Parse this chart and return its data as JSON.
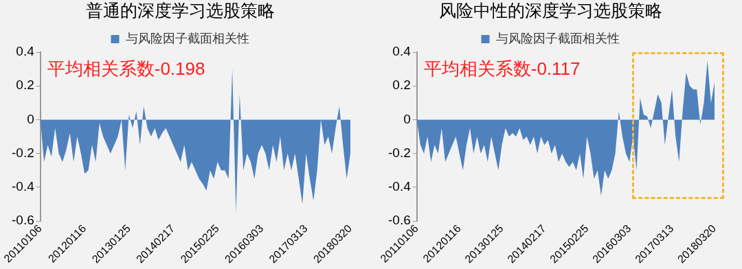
{
  "chart_data": [
    {
      "type": "area",
      "title": "普通的深度学习选股策略",
      "annotations": [
        "平均相关系数-0.198"
      ],
      "legend": "top",
      "categories": [
        "20110106",
        null,
        null,
        null,
        null,
        null,
        null,
        null,
        null,
        null,
        null,
        null,
        "20120116",
        null,
        null,
        null,
        null,
        null,
        null,
        null,
        null,
        null,
        null,
        null,
        "20130125",
        null,
        null,
        null,
        null,
        null,
        null,
        null,
        null,
        null,
        null,
        null,
        "20140217",
        null,
        null,
        null,
        null,
        null,
        null,
        null,
        null,
        null,
        null,
        null,
        "20150225",
        null,
        null,
        null,
        null,
        null,
        null,
        null,
        null,
        null,
        null,
        null,
        "20160303",
        null,
        null,
        null,
        null,
        null,
        null,
        null,
        null,
        null,
        null,
        null,
        "20170313",
        null,
        null,
        null,
        null,
        null,
        null,
        null,
        null,
        null,
        null,
        null,
        "20180320"
      ],
      "series": [
        {
          "name": "与风险因子截面相关性",
          "color": "#4f81bd",
          "values": [
            0,
            -0.25,
            -0.15,
            -0.22,
            -0.05,
            -0.2,
            -0.25,
            -0.18,
            -0.08,
            -0.25,
            -0.1,
            -0.2,
            -0.32,
            -0.3,
            -0.15,
            -0.25,
            -0.02,
            -0.1,
            -0.15,
            -0.2,
            -0.15,
            -0.1,
            0,
            -0.3,
            0.03,
            -0.05,
            0.05,
            -0.15,
            0.08,
            -0.05,
            -0.1,
            -0.05,
            -0.12,
            -0.08,
            -0.05,
            -0.1,
            -0.15,
            -0.2,
            -0.25,
            -0.15,
            -0.3,
            -0.25,
            -0.3,
            -0.35,
            -0.38,
            -0.42,
            -0.3,
            -0.35,
            -0.25,
            -0.3,
            -0.3,
            -0.35,
            0.3,
            -0.55,
            0.15,
            -0.3,
            -0.2,
            -0.25,
            -0.35,
            -0.2,
            -0.15,
            -0.2,
            -0.3,
            -0.15,
            -0.25,
            -0.1,
            -0.3,
            -0.2,
            -0.3,
            -0.2,
            -0.35,
            -0.5,
            -0.2,
            -0.35,
            -0.48,
            -0.3,
            0,
            -0.15,
            -0.1,
            -0.2,
            -0.05,
            0.08,
            -0.15,
            -0.35,
            -0.2
          ]
        }
      ],
      "ylim": [
        -0.6,
        0.4
      ],
      "yticks": [
        -0.6,
        -0.4,
        -0.2,
        0,
        0.2,
        0.4
      ]
    },
    {
      "type": "area",
      "title": "风险中性的深度学习选股策略",
      "annotations": [
        "平均相关系数-0.117"
      ],
      "legend": "top",
      "categories": [
        "20110106",
        null,
        null,
        null,
        null,
        null,
        null,
        null,
        null,
        null,
        null,
        null,
        "20120116",
        null,
        null,
        null,
        null,
        null,
        null,
        null,
        null,
        null,
        null,
        null,
        "20130125",
        null,
        null,
        null,
        null,
        null,
        null,
        null,
        null,
        null,
        null,
        null,
        "20140217",
        null,
        null,
        null,
        null,
        null,
        null,
        null,
        null,
        null,
        null,
        null,
        "20150225",
        null,
        null,
        null,
        null,
        null,
        null,
        null,
        null,
        null,
        null,
        null,
        "20160303",
        null,
        null,
        null,
        null,
        null,
        null,
        null,
        null,
        null,
        null,
        null,
        "20170313",
        null,
        null,
        null,
        null,
        null,
        null,
        null,
        null,
        null,
        null,
        null,
        "20180320"
      ],
      "series": [
        {
          "name": "与风险因子截面相关性",
          "color": "#4f81bd",
          "values": [
            0,
            -0.15,
            -0.2,
            -0.1,
            -0.25,
            -0.15,
            -0.2,
            -0.05,
            -0.25,
            -0.2,
            -0.15,
            -0.1,
            -0.2,
            -0.3,
            -0.15,
            -0.05,
            -0.2,
            -0.1,
            -0.2,
            -0.15,
            -0.25,
            -0.1,
            -0.2,
            -0.3,
            -0.15,
            -0.05,
            -0.1,
            -0.08,
            -0.1,
            -0.05,
            -0.12,
            -0.1,
            -0.15,
            -0.1,
            -0.2,
            -0.1,
            -0.15,
            -0.12,
            -0.2,
            -0.15,
            -0.25,
            -0.2,
            -0.25,
            -0.28,
            -0.25,
            -0.3,
            -0.2,
            -0.35,
            -0.1,
            -0.2,
            -0.35,
            -0.3,
            -0.45,
            -0.3,
            -0.35,
            -0.3,
            -0.2,
            0.05,
            -0.1,
            -0.2,
            -0.25,
            -0.1,
            -0.3,
            0.13,
            0.03,
            0.02,
            -0.05,
            0.05,
            0.15,
            0.1,
            -0.15,
            0.02,
            0.18,
            -0.1,
            -0.25,
            0.05,
            0.28,
            0.2,
            0.18,
            0.18,
            -0.03,
            0.1,
            0.35,
            0.1,
            0.22
          ]
        }
      ],
      "ylim": [
        -0.6,
        0.4
      ],
      "yticks": [
        -0.6,
        -0.4,
        -0.2,
        0,
        0.2,
        0.4
      ]
    }
  ]
}
